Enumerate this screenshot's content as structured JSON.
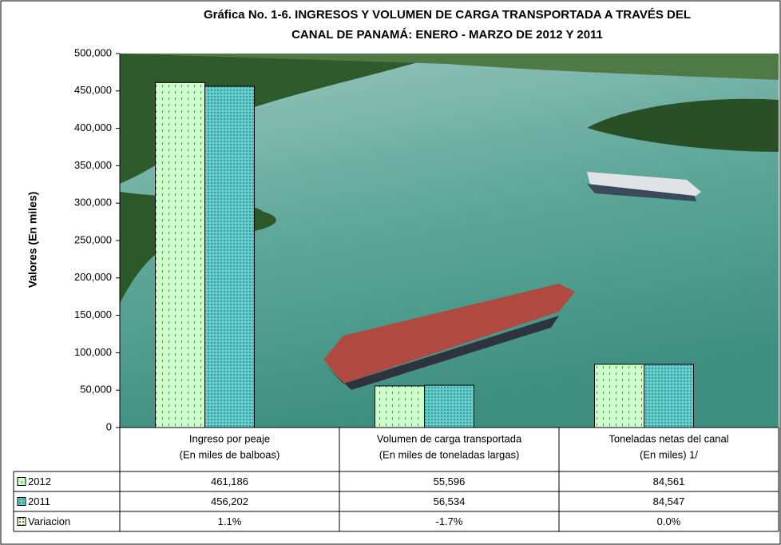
{
  "chart_data": {
    "type": "bar",
    "title": [
      "Gráfica No. 1-6.  INGRESOS Y VOLUMEN DE CARGA TRANSPORTADA A TRAVÉS DEL",
      "CANAL DE PANAMÁ:  ENERO - MARZO DE 2012 Y 2011"
    ],
    "y_label": "Valores (En miles)",
    "categories": [
      [
        "Ingreso por peaje",
        "(En miles de balboas)"
      ],
      [
        "Volumen de carga transportada",
        "(En miles de toneladas largas)"
      ],
      [
        "Toneladas netas del canal",
        "(En miles) 1/"
      ]
    ],
    "series": [
      {
        "name": "2012",
        "color": "#ccffcc",
        "values": [
          461186,
          55596,
          84561
        ],
        "value_labels": [
          "461,186",
          "55,596",
          "84,561"
        ]
      },
      {
        "name": "2011",
        "color": "#66cccc",
        "values": [
          456202,
          56534,
          84547
        ],
        "value_labels": [
          "456,202",
          "56,534",
          "84,547"
        ]
      },
      {
        "name": "Variacion",
        "color": "#ffffcc",
        "values": [
          1.1,
          -1.7,
          0.0
        ],
        "value_labels": [
          "1.1%",
          "-1.7%",
          "0.0%"
        ]
      }
    ],
    "ylim": [
      0,
      500000
    ],
    "yticks": [
      0,
      {
        "value": 50000,
        "label": "50,000"
      },
      {
        "value": 100000,
        "label": "100,000"
      },
      {
        "value": 150000,
        "label": "150,000"
      },
      {
        "value": 200000,
        "label": "200,000"
      },
      {
        "value": 250000,
        "label": "250,000"
      },
      {
        "value": 300000,
        "label": "300,000"
      },
      {
        "value": 350000,
        "label": "350,000"
      },
      {
        "value": 400000,
        "label": "400,000"
      },
      {
        "value": 450000,
        "label": "450,000"
      },
      {
        "value": 500000,
        "label": "500,000"
      }
    ]
  }
}
